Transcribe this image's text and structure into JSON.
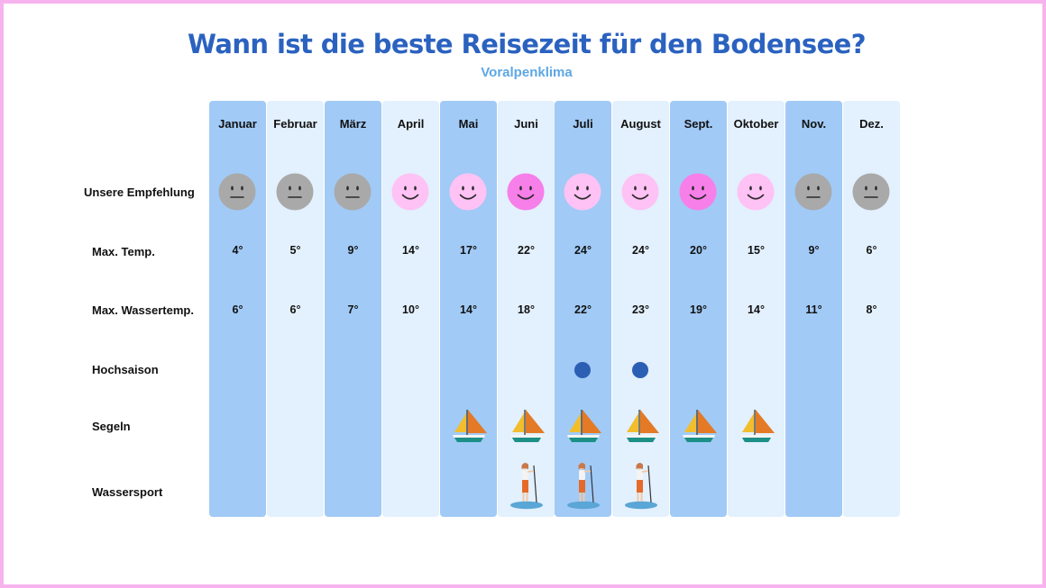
{
  "title": "Wann ist die beste Reisezeit für den Bodensee?",
  "subtitle": "Voralpenklima",
  "colors": {
    "frame": "#f7b3ee",
    "title": "#2b62c0",
    "subtitle": "#5ea7e3",
    "column_dark": "#a1caf6",
    "column_light": "#e3f0fd",
    "face_neutral": "#a9a9a9",
    "face_good": "#ffc2f4",
    "face_best": "#f77fe9",
    "hochsaison_dot": "#2b5fb4"
  },
  "row_labels": {
    "empfehlung": "Unsere Empfehlung",
    "max_temp": "Max. Temp.",
    "max_wassertemp": "Max. Wassertemp.",
    "hochsaison": "Hochsaison",
    "segeln": "Segeln",
    "wassersport": "Wassersport"
  },
  "months": [
    {
      "name": "Januar",
      "recommendation": "neutral",
      "max_temp": "4°",
      "max_wassertemp": "6°",
      "hochsaison": false,
      "segeln": false,
      "wassersport": false
    },
    {
      "name": "Februar",
      "recommendation": "neutral",
      "max_temp": "5°",
      "max_wassertemp": "6°",
      "hochsaison": false,
      "segeln": false,
      "wassersport": false
    },
    {
      "name": "März",
      "recommendation": "neutral",
      "max_temp": "9°",
      "max_wassertemp": "7°",
      "hochsaison": false,
      "segeln": false,
      "wassersport": false
    },
    {
      "name": "April",
      "recommendation": "good",
      "max_temp": "14°",
      "max_wassertemp": "10°",
      "hochsaison": false,
      "segeln": false,
      "wassersport": false
    },
    {
      "name": "Mai",
      "recommendation": "good",
      "max_temp": "17°",
      "max_wassertemp": "14°",
      "hochsaison": false,
      "segeln": true,
      "wassersport": false
    },
    {
      "name": "Juni",
      "recommendation": "best",
      "max_temp": "22°",
      "max_wassertemp": "18°",
      "hochsaison": false,
      "segeln": true,
      "wassersport": true
    },
    {
      "name": "Juli",
      "recommendation": "good",
      "max_temp": "24°",
      "max_wassertemp": "22°",
      "hochsaison": true,
      "segeln": true,
      "wassersport": true
    },
    {
      "name": "August",
      "recommendation": "good",
      "max_temp": "24°",
      "max_wassertemp": "23°",
      "hochsaison": true,
      "segeln": true,
      "wassersport": true
    },
    {
      "name": "Sept.",
      "recommendation": "best",
      "max_temp": "20°",
      "max_wassertemp": "19°",
      "hochsaison": false,
      "segeln": true,
      "wassersport": false
    },
    {
      "name": "Oktober",
      "recommendation": "good",
      "max_temp": "15°",
      "max_wassertemp": "14°",
      "hochsaison": false,
      "segeln": true,
      "wassersport": false
    },
    {
      "name": "Nov.",
      "recommendation": "neutral",
      "max_temp": "9°",
      "max_wassertemp": "11°",
      "hochsaison": false,
      "segeln": false,
      "wassersport": false
    },
    {
      "name": "Dez.",
      "recommendation": "neutral",
      "max_temp": "6°",
      "max_wassertemp": "8°",
      "hochsaison": false,
      "segeln": false,
      "wassersport": false
    }
  ]
}
